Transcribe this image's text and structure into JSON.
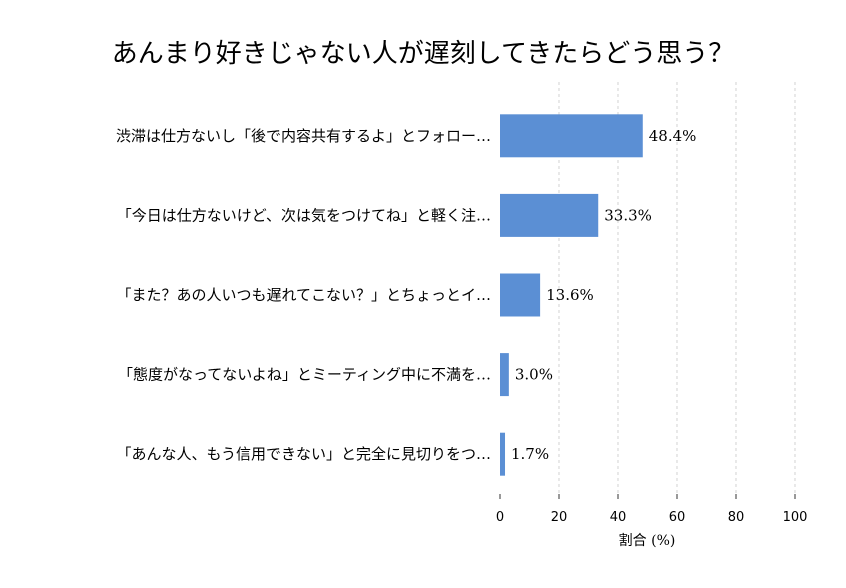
{
  "chart_data": {
    "type": "bar",
    "orientation": "horizontal",
    "title": "あんまり好きじゃない人が遅刻してきたらどう思う？",
    "xlabel": "割合 (%)",
    "ylabel": "",
    "xlim": [
      0,
      100
    ],
    "x_ticks": [
      "0",
      "20",
      "40",
      "60",
      "80",
      "100"
    ],
    "categories": [
      "渋滞は仕方ないし「後で内容共有するよ」とフォロー…",
      "「今日は仕方ないけど、次は気をつけてね」と軽く注…",
      "「また？あの人いつも遅れてこない？」とちょっとイ…",
      "「態度がなってないよね」とミーティング中に不満を…",
      "「あんな人、もう信用できない」と完全に見切りをつ…"
    ],
    "values": [
      48.4,
      33.3,
      13.6,
      3.0,
      1.7
    ],
    "value_labels": [
      "48.4%",
      "33.3%",
      "13.6%",
      "3.0%",
      "1.7%"
    ],
    "bar_color": "#5b8fd4",
    "grid": "vertical dashed",
    "legend": "none"
  }
}
